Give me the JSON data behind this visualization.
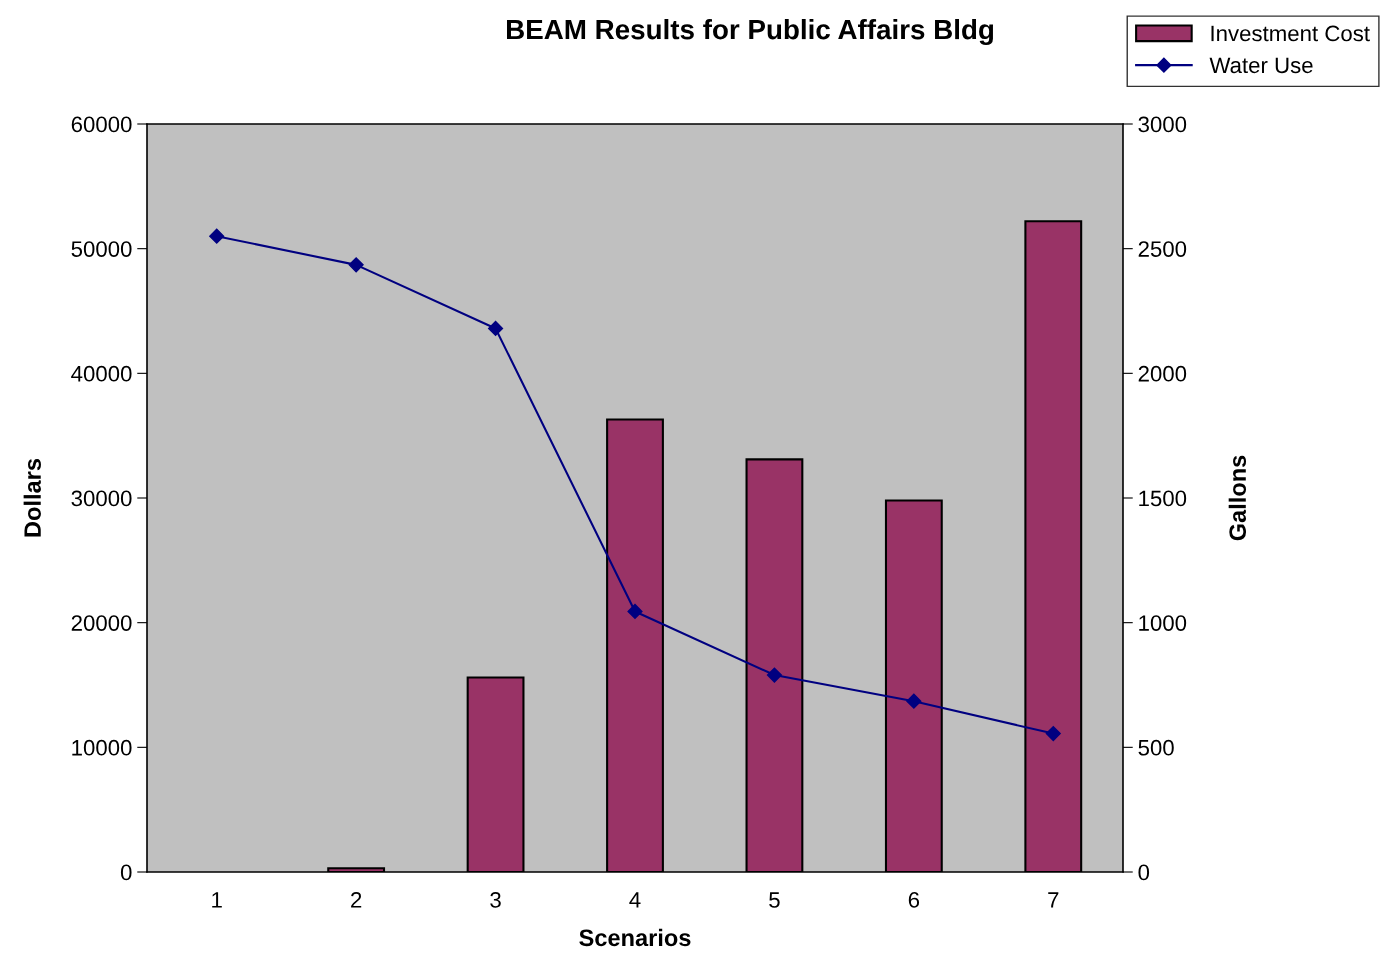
{
  "chart_data": {
    "type": "bar",
    "title": "BEAM Results for Public Affairs Bldg",
    "xlabel": "Scenarios",
    "ylabel": "Dollars",
    "y2label": "Gallons",
    "categories": [
      "1",
      "2",
      "3",
      "4",
      "5",
      "6",
      "7"
    ],
    "series": [
      {
        "name": "Investment Cost",
        "color": "#993366",
        "values": [
          null,
          300,
          15600,
          36300,
          33100,
          29800,
          52200
        ]
      },
      {
        "name": "Water Use",
        "type": "line",
        "axis": "y2",
        "color": "#000080",
        "marker": "diamond",
        "values": [
          2550,
          2435,
          2180,
          1045,
          790,
          685,
          555
        ]
      }
    ],
    "ylim": [
      0,
      60000
    ],
    "yticks": [
      0,
      10000,
      20000,
      30000,
      40000,
      50000,
      60000
    ],
    "y2lim": [
      0,
      3000
    ],
    "y2ticks": [
      0,
      500,
      1000,
      1500,
      2000,
      2500,
      3000
    ],
    "grid": false,
    "legend": "top right"
  }
}
